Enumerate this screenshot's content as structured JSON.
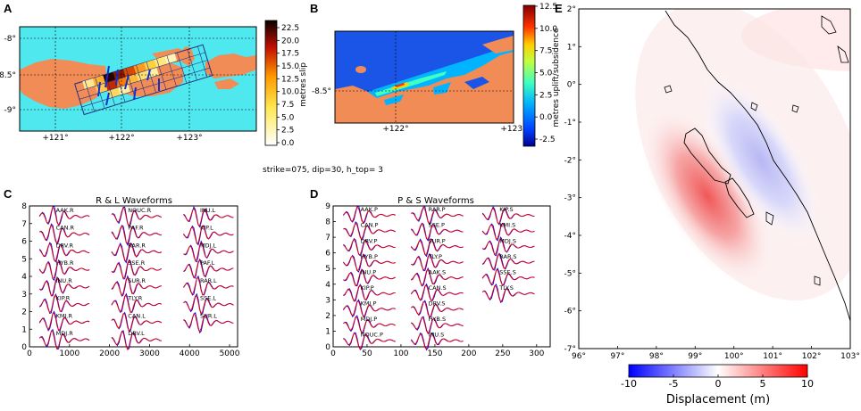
{
  "panel_labels": {
    "a": "A",
    "b": "B",
    "c": "C",
    "d": "D",
    "e": "E"
  },
  "panel_a": {
    "y_ticks": [
      "-8°",
      "-8.5°",
      "-9°"
    ],
    "x_ticks": [
      "+121°",
      "+122°",
      "+123°"
    ],
    "colorbar_ticks": [
      "22.5",
      "20.0",
      "17.5",
      "15.0",
      "12.5",
      "10.0",
      "7.5",
      "5.0",
      "2.5",
      "0.0"
    ],
    "colorbar_label": "metres slip",
    "caption": "strike=075, dip=30, h_top=  3"
  },
  "panel_b": {
    "y_ticks": [
      "-8.5°"
    ],
    "x_ticks": [
      "+122°",
      "+123°"
    ],
    "colorbar_ticks": [
      "12.5",
      "10.0",
      "7.5",
      "5.0",
      "2.5",
      "0.0",
      "-2.5"
    ],
    "colorbar_label": "metres uplift/subsidence"
  },
  "colors": {
    "sea_cyan": "#4ee8ee",
    "land_orange": "#f28c57",
    "deep_blue": "#1b55e8"
  },
  "chart_data": [
    {
      "type": "line",
      "panel": "C",
      "title": "R & L Waveforms",
      "x_ticks": [
        "0",
        "1000",
        "2000",
        "3000",
        "4000",
        "5000"
      ],
      "y_ticks": [
        "0",
        "1",
        "2",
        "3",
        "4",
        "5",
        "6",
        "7",
        "8"
      ],
      "xlim": [
        0,
        5200
      ],
      "ylim": [
        0,
        8
      ],
      "series_colors": {
        "observed": "#0000ee",
        "synthetic": "#ee0000"
      },
      "columns": [
        {
          "x0": 250,
          "stations": [
            "AAK.R",
            "CAN.R",
            "DRV.R",
            "HYB.R",
            "INU.R",
            "KIP.R",
            "KMI.R",
            "MDJ.R"
          ]
        },
        {
          "x0": 2050,
          "stations": [
            "NOUC.R",
            "PAF.R",
            "RAR.R",
            "SSE.R",
            "SUR.R",
            "TLY.R",
            "CAN.L",
            "DRV.L"
          ]
        },
        {
          "x0": 3850,
          "stations": [
            "INU.L",
            "KIP.L",
            "MDJ.L",
            "PAF.L",
            "RAR.L",
            "SSE.L",
            "SUR.L"
          ]
        }
      ]
    },
    {
      "type": "line",
      "panel": "D",
      "title": "P & S Waveforms",
      "x_ticks": [
        "0",
        "50",
        "100",
        "150",
        "200",
        "250",
        "300"
      ],
      "y_ticks": [
        "0",
        "1",
        "2",
        "3",
        "4",
        "5",
        "6",
        "7",
        "8",
        "9"
      ],
      "xlim": [
        0,
        320
      ],
      "ylim": [
        0,
        9
      ],
      "series_colors": {
        "observed": "#0000ee",
        "synthetic": "#ee0000"
      },
      "columns": [
        {
          "x0": 15,
          "stations": [
            "AAK.P",
            "CAN.P",
            "DRV.P",
            "HYB.P",
            "INU.P",
            "KIP.P",
            "KMI.P",
            "MDJ.P",
            "NOUC.P"
          ]
        },
        {
          "x0": 115,
          "stations": [
            "RAR.P",
            "SSE.P",
            "SUR.P",
            "TLY.P",
            "AAK.S",
            "CAN.S",
            "DRV.S",
            "HYB.S",
            "INU.S"
          ]
        },
        {
          "x0": 220,
          "stations": [
            "KIP.S",
            "KMI.S",
            "MDJ.S",
            "RAR.S",
            "SSE.S",
            "TLY.S"
          ]
        }
      ]
    },
    {
      "type": "heatmap",
      "panel": "E",
      "x_ticks": [
        "96°",
        "97°",
        "98°",
        "99°",
        "100°",
        "101°",
        "102°",
        "103°"
      ],
      "y_ticks": [
        "2°",
        "1°",
        "0°",
        "-1°",
        "-2°",
        "-3°",
        "-4°",
        "-5°",
        "-6°",
        "-7°"
      ],
      "xlim": [
        96,
        103
      ],
      "ylim": [
        -7,
        2
      ],
      "colorbar_ticks": [
        "-10",
        "-5",
        "0",
        "5",
        "10"
      ],
      "colorbar_label": "Displacement (m)",
      "vmin": -10,
      "vmax": 10
    }
  ]
}
